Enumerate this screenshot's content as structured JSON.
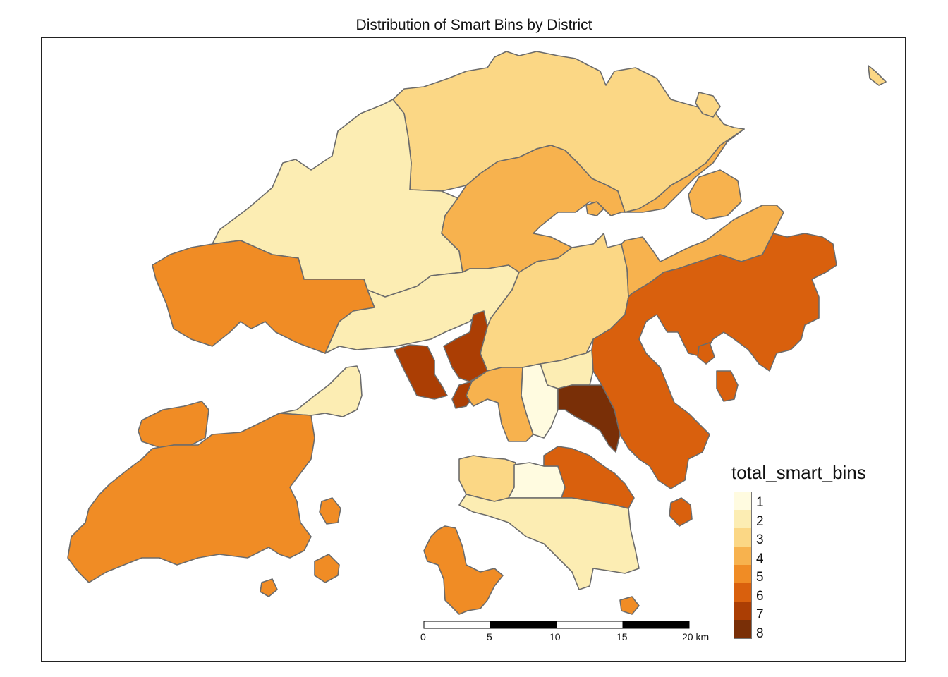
{
  "title": "Distribution of Smart Bins by District",
  "legend": {
    "title": "total_smart_bins",
    "items": [
      {
        "label": "1",
        "color": "#fffbe0"
      },
      {
        "label": "2",
        "color": "#fcedb3"
      },
      {
        "label": "3",
        "color": "#fbd785"
      },
      {
        "label": "4",
        "color": "#f7b24e"
      },
      {
        "label": "5",
        "color": "#f08c25"
      },
      {
        "label": "6",
        "color": "#d9600d"
      },
      {
        "label": "7",
        "color": "#ab3e04"
      },
      {
        "label": "8",
        "color": "#792f07"
      }
    ]
  },
  "scale_bar": {
    "labels": [
      "0",
      "5",
      "10",
      "15",
      "20 km"
    ]
  },
  "districts": [
    {
      "id": "north",
      "value": 3
    },
    {
      "id": "yuen-long",
      "value": 2
    },
    {
      "id": "tai-po",
      "value": 4
    },
    {
      "id": "tuen-mun",
      "value": 5
    },
    {
      "id": "tsuen-wan",
      "value": 2
    },
    {
      "id": "sha-tin",
      "value": 3
    },
    {
      "id": "sai-kung-north",
      "value": 4
    },
    {
      "id": "sai-kung",
      "value": 6
    },
    {
      "id": "kwai-tsing",
      "value": 7
    },
    {
      "id": "sham-shui-po",
      "value": 7
    },
    {
      "id": "islands-lantau",
      "value": 5
    },
    {
      "id": "islands-north-lantau",
      "value": 2
    },
    {
      "id": "wong-tai-sin",
      "value": 2
    },
    {
      "id": "kowloon-city",
      "value": 4
    },
    {
      "id": "yau-tsim-mong",
      "value": 1
    },
    {
      "id": "kwun-tong",
      "value": 8
    },
    {
      "id": "eastern",
      "value": 6
    },
    {
      "id": "central-western",
      "value": 3
    },
    {
      "id": "wan-chai",
      "value": 1
    },
    {
      "id": "southern",
      "value": 2
    },
    {
      "id": "lamma",
      "value": 5
    }
  ]
}
